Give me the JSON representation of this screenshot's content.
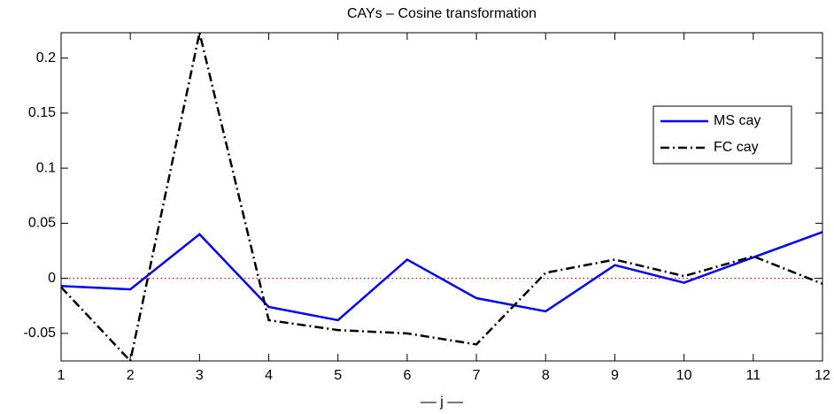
{
  "chart_data": {
    "type": "line",
    "title": "CAYs – Cosine transformation",
    "x_label": "–– j ––",
    "x": [
      1,
      2,
      3,
      4,
      5,
      6,
      7,
      8,
      9,
      10,
      11,
      12
    ],
    "xlim": [
      1,
      12
    ],
    "xticks": [
      1,
      2,
      3,
      4,
      5,
      6,
      7,
      8,
      9,
      10,
      11,
      12
    ],
    "ylim": [
      -0.075,
      0.223
    ],
    "yticks": [
      -0.05,
      0,
      0.05,
      0.1,
      0.15,
      0.2
    ],
    "reference_line": {
      "value": 0,
      "color": "#ff0000"
    },
    "legend_position": "upper right",
    "series": [
      {
        "name": "MS cay",
        "color": "#0000ff",
        "dash": "solid",
        "values": [
          -0.007,
          -0.01,
          0.04,
          -0.026,
          -0.038,
          0.017,
          -0.018,
          -0.03,
          0.012,
          -0.004,
          0.019,
          0.042
        ]
      },
      {
        "name": "FC cay",
        "color": "#000000",
        "dash": "dashdot",
        "values": [
          -0.008,
          -0.075,
          0.223,
          -0.038,
          -0.047,
          -0.05,
          -0.06,
          0.005,
          0.017,
          0.002,
          0.02,
          -0.005
        ]
      }
    ]
  }
}
